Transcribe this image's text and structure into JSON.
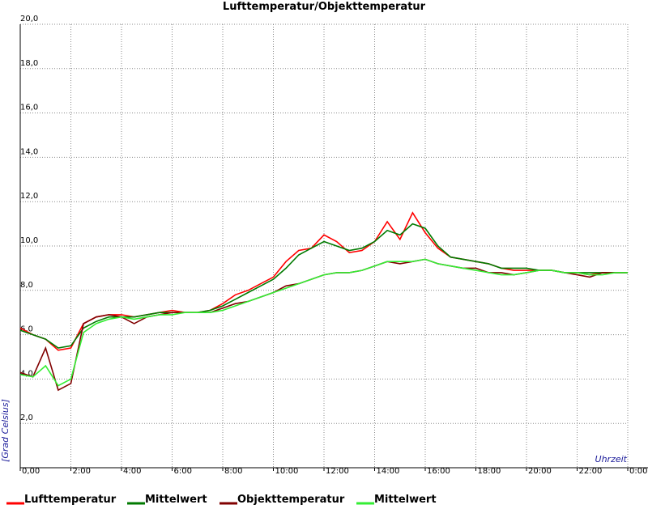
{
  "chart_data": {
    "type": "line",
    "title": "Lufttemperatur/Objekttemperatur",
    "y_label": "[Grad Celsius]",
    "x_label": "Uhrzeit",
    "x": [
      0,
      0.5,
      1,
      1.5,
      2,
      2.5,
      3,
      3.5,
      4,
      4.5,
      5,
      5.5,
      6,
      6.5,
      7,
      7.5,
      8,
      8.5,
      9,
      9.5,
      10,
      10.5,
      11,
      11.5,
      12,
      12.5,
      13,
      13.5,
      14,
      14.5,
      15,
      15.5,
      16,
      16.5,
      17,
      17.5,
      18,
      18.5,
      19,
      19.5,
      20,
      20.5,
      21,
      21.5,
      22,
      22.5,
      23,
      23.5,
      24
    ],
    "series": [
      {
        "name": "Lufttemperatur",
        "color": "#ff0000",
        "values": [
          6.3,
          6.0,
          5.8,
          5.3,
          5.4,
          6.5,
          6.8,
          6.9,
          6.9,
          6.8,
          6.9,
          7.0,
          7.1,
          7.0,
          7.0,
          7.1,
          7.4,
          7.8,
          8.0,
          8.3,
          8.6,
          9.3,
          9.8,
          9.9,
          10.5,
          10.2,
          9.7,
          9.8,
          10.2,
          11.1,
          10.3,
          11.5,
          10.6,
          9.9,
          9.5,
          9.4,
          9.3,
          9.2,
          9.0,
          8.9,
          8.9,
          8.9,
          8.9,
          8.8,
          8.8,
          8.7,
          8.8,
          8.8,
          8.8
        ]
      },
      {
        "name": "Mittelwert",
        "color": "#007a00",
        "values": [
          6.2,
          6.0,
          5.8,
          5.4,
          5.5,
          6.3,
          6.6,
          6.8,
          6.8,
          6.8,
          6.9,
          7.0,
          7.0,
          7.0,
          7.0,
          7.1,
          7.3,
          7.6,
          7.9,
          8.2,
          8.5,
          9.0,
          9.6,
          9.9,
          10.2,
          10.0,
          9.8,
          9.9,
          10.2,
          10.7,
          10.5,
          11.0,
          10.8,
          10.0,
          9.5,
          9.4,
          9.3,
          9.2,
          9.0,
          9.0,
          9.0,
          8.9,
          8.9,
          8.8,
          8.8,
          8.8,
          8.8,
          8.8,
          8.8
        ]
      },
      {
        "name": "Objekttemperatur",
        "color": "#800000",
        "values": [
          4.3,
          4.1,
          5.4,
          3.5,
          3.8,
          6.5,
          6.8,
          6.9,
          6.8,
          6.5,
          6.8,
          6.9,
          7.0,
          7.0,
          7.0,
          7.0,
          7.2,
          7.4,
          7.5,
          7.7,
          7.9,
          8.2,
          8.3,
          8.5,
          8.7,
          8.8,
          8.8,
          8.9,
          9.1,
          9.3,
          9.2,
          9.3,
          9.4,
          9.2,
          9.1,
          9.0,
          9.0,
          8.8,
          8.8,
          8.7,
          8.8,
          8.9,
          8.9,
          8.8,
          8.7,
          8.6,
          8.8,
          8.8,
          8.8
        ]
      },
      {
        "name": "Mittelwert",
        "color": "#33ee33",
        "values": [
          4.2,
          4.1,
          4.6,
          3.7,
          4.0,
          6.1,
          6.5,
          6.7,
          6.8,
          6.7,
          6.8,
          6.9,
          6.9,
          7.0,
          7.0,
          7.0,
          7.1,
          7.3,
          7.5,
          7.7,
          7.9,
          8.1,
          8.3,
          8.5,
          8.7,
          8.8,
          8.8,
          8.9,
          9.1,
          9.3,
          9.3,
          9.3,
          9.4,
          9.2,
          9.1,
          9.0,
          8.9,
          8.8,
          8.7,
          8.7,
          8.8,
          8.9,
          8.9,
          8.8,
          8.8,
          8.7,
          8.7,
          8.8,
          8.8
        ]
      }
    ],
    "xlim": [
      0,
      24
    ],
    "xticks": [
      {
        "value": 0,
        "label": "0,00"
      },
      {
        "value": 2,
        "label": "2:00"
      },
      {
        "value": 4,
        "label": "4:00"
      },
      {
        "value": 6,
        "label": "6:00"
      },
      {
        "value": 8,
        "label": "8:00"
      },
      {
        "value": 10,
        "label": "10:00"
      },
      {
        "value": 12,
        "label": "12:00"
      },
      {
        "value": 14,
        "label": "14:00"
      },
      {
        "value": 16,
        "label": "16:00"
      },
      {
        "value": 18,
        "label": "18:00"
      },
      {
        "value": 20,
        "label": "20:00"
      },
      {
        "value": 22,
        "label": "22:00"
      },
      {
        "value": 24,
        "label": "0:00"
      }
    ],
    "ylim": [
      0,
      20
    ],
    "yticks": [
      {
        "value": 2,
        "label": "2,0"
      },
      {
        "value": 4,
        "label": "4,0"
      },
      {
        "value": 6,
        "label": "6,0"
      },
      {
        "value": 8,
        "label": "8,0"
      },
      {
        "value": 10,
        "label": "10,0"
      },
      {
        "value": 12,
        "label": "12,0"
      },
      {
        "value": 14,
        "label": "14,0"
      },
      {
        "value": 16,
        "label": "16,0"
      },
      {
        "value": 18,
        "label": "18,0"
      },
      {
        "value": 20,
        "label": "20,0"
      }
    ],
    "grid": true,
    "legend": "bottom"
  }
}
